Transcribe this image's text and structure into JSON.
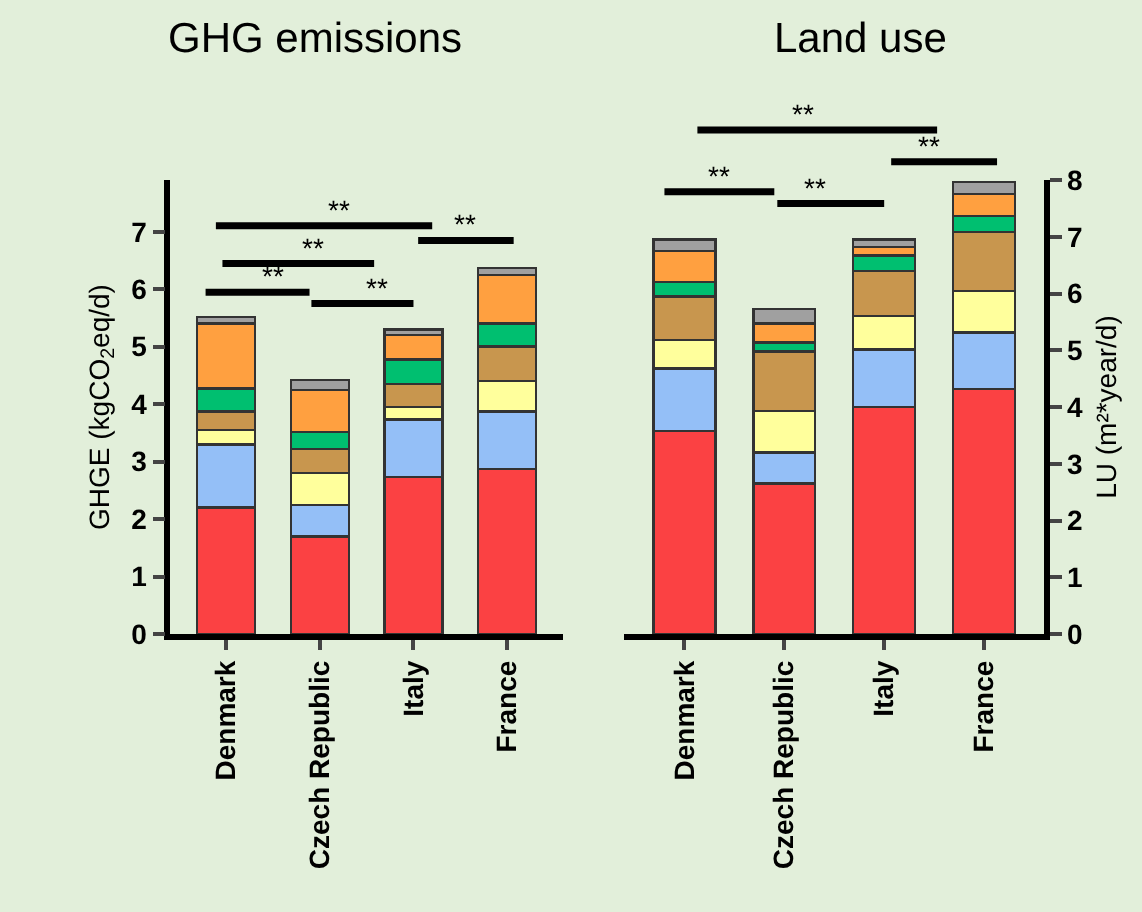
{
  "chart_data": [
    {
      "type": "bar",
      "stacked": true,
      "title": "GHG emissions",
      "ylabel": "GHGE (kgCO$_{2}$eq/d)",
      "categories": [
        "Denmark",
        "Czech Republic",
        "Italy",
        "France"
      ],
      "ylim": [
        0,
        7.9
      ],
      "yticks": [
        0,
        1,
        2,
        3,
        4,
        5,
        6,
        7
      ],
      "grid": false,
      "series": [
        {
          "color": "#fb4143",
          "values": [
            2.2,
            1.7,
            2.73,
            2.87
          ]
        },
        {
          "color": "#94bff7",
          "values": [
            1.1,
            0.55,
            1.0,
            1.0
          ]
        },
        {
          "color": "#ffff9c",
          "values": [
            0.25,
            0.55,
            0.22,
            0.53
          ]
        },
        {
          "color": "#c8964e",
          "values": [
            0.32,
            0.42,
            0.4,
            0.6
          ]
        },
        {
          "color": "#00bf70",
          "values": [
            0.4,
            0.3,
            0.43,
            0.4
          ]
        },
        {
          "color": "#ffa040",
          "values": [
            1.13,
            0.73,
            0.42,
            0.85
          ]
        },
        {
          "color": "#a0a0a0",
          "values": [
            0.12,
            0.17,
            0.1,
            0.12
          ]
        }
      ],
      "annotations": [
        "**",
        "**",
        "**",
        "**",
        "**"
      ]
    },
    {
      "type": "bar",
      "stacked": true,
      "title": "Land use",
      "ylabel": "LU (m²*year/d)",
      "categories": [
        "Denmark",
        "Czech Republic",
        "Italy",
        "France"
      ],
      "ylim": [
        0,
        8
      ],
      "yticks": [
        0,
        1,
        2,
        3,
        4,
        5,
        6,
        7,
        8
      ],
      "grid": false,
      "series": [
        {
          "color": "#fb4143",
          "values": [
            3.58,
            2.65,
            4.0,
            4.32
          ]
        },
        {
          "color": "#94bff7",
          "values": [
            1.1,
            0.55,
            1.01,
            0.99
          ]
        },
        {
          "color": "#ffff9c",
          "values": [
            0.5,
            0.73,
            0.59,
            0.73
          ]
        },
        {
          "color": "#c8964e",
          "values": [
            0.77,
            1.05,
            0.8,
            1.04
          ]
        },
        {
          "color": "#00bf70",
          "values": [
            0.25,
            0.16,
            0.27,
            0.29
          ]
        },
        {
          "color": "#ffa040",
          "values": [
            0.55,
            0.33,
            0.15,
            0.38
          ]
        },
        {
          "color": "#a0a0a0",
          "values": [
            0.2,
            0.26,
            0.13,
            0.22
          ]
        }
      ],
      "annotations": [
        "**",
        "**",
        "**",
        "**"
      ]
    }
  ]
}
